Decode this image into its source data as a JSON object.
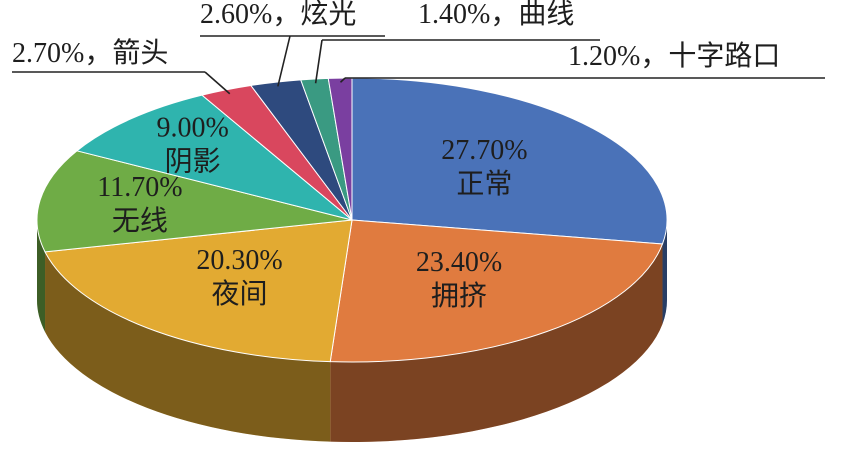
{
  "chart_data": {
    "type": "pie",
    "categories": [
      "正常",
      "拥挤",
      "夜间",
      "无线",
      "阴影",
      "箭头",
      "炫光",
      "曲线",
      "十字路口"
    ],
    "values": [
      27.7,
      23.4,
      20.3,
      11.7,
      9.0,
      2.7,
      2.6,
      1.4,
      1.2
    ],
    "value_labels": [
      "27.70%",
      "23.40%",
      "20.30%",
      "11.70%",
      "9.00%",
      "2.70%",
      "2.60%",
      "1.40%",
      "1.20%"
    ],
    "separator": "，",
    "colors": [
      "#4a72b8",
      "#e07b3f",
      "#e2aa32",
      "#6fac46",
      "#2fb4ae",
      "#d9475e",
      "#2e4a7e",
      "#3a9a82",
      "#7a3fa0"
    ]
  }
}
